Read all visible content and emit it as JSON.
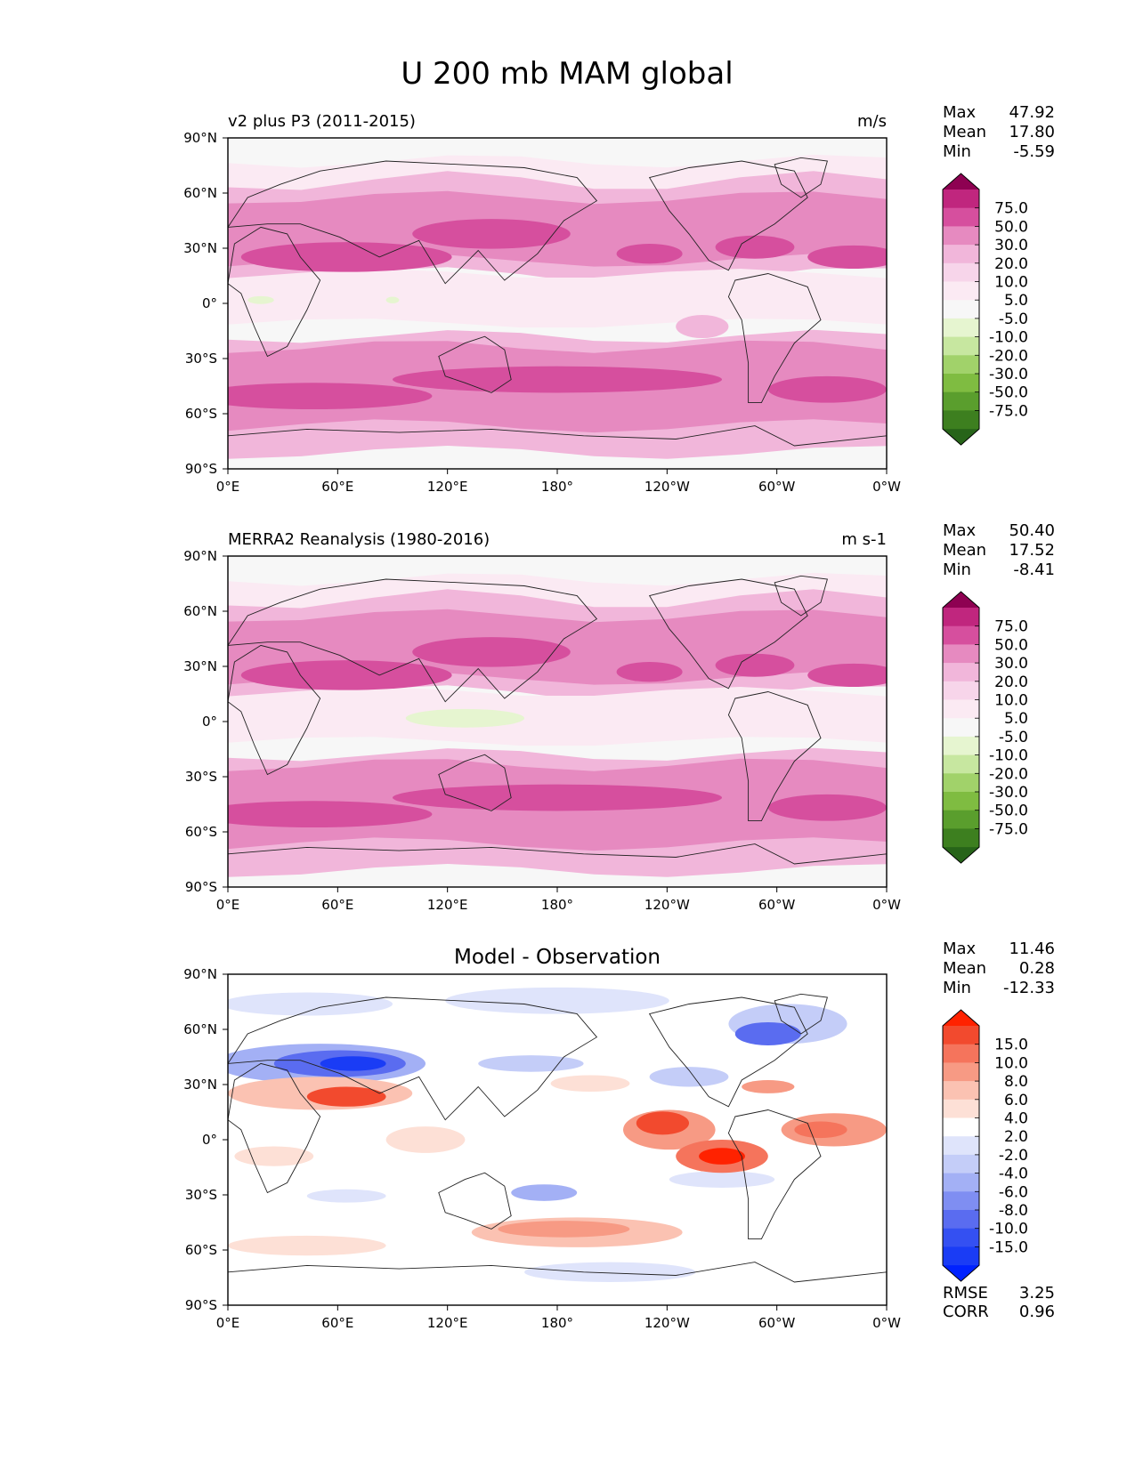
{
  "figure_title": "U 200 mb MAM global",
  "panels": [
    {
      "key": "test",
      "left_title": "v2 plus P3 (2011-2015)",
      "center_title": "",
      "units": "m/s",
      "stats": [
        {
          "label": "Max",
          "value": "47.92"
        },
        {
          "label": "Mean",
          "value": "17.80"
        },
        {
          "label": "Min",
          "value": "-5.59"
        }
      ],
      "extra_stats": []
    },
    {
      "key": "ref",
      "left_title": "MERRA2 Reanalysis (1980-2016)",
      "center_title": "",
      "units": "m s-1",
      "stats": [
        {
          "label": "Max",
          "value": "50.40"
        },
        {
          "label": "Mean",
          "value": "17.52"
        },
        {
          "label": "Min",
          "value": "-8.41"
        }
      ],
      "extra_stats": []
    },
    {
      "key": "diff",
      "left_title": "",
      "center_title": "Model - Observation",
      "units": "",
      "stats": [
        {
          "label": "Max",
          "value": "11.46"
        },
        {
          "label": "Mean",
          "value": "0.28"
        },
        {
          "label": "Min",
          "value": "-12.33"
        }
      ],
      "extra_stats": [
        {
          "label": "RMSE",
          "value": "3.25"
        },
        {
          "label": "CORR",
          "value": "0.96"
        }
      ]
    }
  ],
  "axes": {
    "lat_ticks": [
      "90°N",
      "60°N",
      "30°N",
      "0°",
      "30°S",
      "60°S",
      "90°S"
    ],
    "lon_ticks": [
      "0°E",
      "60°E",
      "120°E",
      "180°",
      "120°W",
      "60°W",
      "0°W"
    ]
  },
  "colorbars": {
    "wind": {
      "labels": [
        "75.0",
        "50.0",
        "30.0",
        "20.0",
        "10.0",
        "5.0",
        "-5.0",
        "-10.0",
        "-20.0",
        "-30.0",
        "-50.0",
        "-75.0"
      ],
      "colors": [
        "#8e0152",
        "#c0267e",
        "#d64f9e",
        "#e68ac0",
        "#f1b6da",
        "#f7d5ea",
        "#fbeaf3",
        "#f7f7f7",
        "#e6f5d0",
        "#c7e7a0",
        "#a1d26a",
        "#7fbc41",
        "#5a9e2d",
        "#3d7f1f",
        "#276419"
      ]
    },
    "diff": {
      "labels": [
        "15.0",
        "10.0",
        "8.0",
        "6.0",
        "4.0",
        "2.0",
        "-2.0",
        "-4.0",
        "-6.0",
        "-8.0",
        "-10.0",
        "-15.0"
      ],
      "colors": [
        "#ff2200",
        "#f24a2e",
        "#f5745c",
        "#f79a84",
        "#fbc2b2",
        "#fde0d6",
        "#ffffff",
        "#dfe4fb",
        "#c4cdf8",
        "#a3b0f5",
        "#7f8ef2",
        "#5a6cf0",
        "#3450f2",
        "#1a3cf5",
        "#0022ff"
      ]
    }
  },
  "chart_data": [
    {
      "type": "heatmap",
      "title": "v2 plus P3 (2011-2015)",
      "units": "m/s",
      "variable": "U 200 mb",
      "season": "MAM",
      "x": [
        "0°E",
        "60°E",
        "120°E",
        "180°",
        "120°W",
        "60°W",
        "0°W"
      ],
      "y": [
        "90°N",
        "60°N",
        "30°N",
        "0°",
        "30°S",
        "60°S",
        "90°S"
      ],
      "xlim": [
        0,
        360
      ],
      "ylim": [
        -90,
        90
      ],
      "levels": [
        -75.0,
        -50.0,
        -30.0,
        -20.0,
        -10.0,
        -5.0,
        5.0,
        10.0,
        20.0,
        30.0,
        50.0,
        75.0
      ],
      "max": 47.92,
      "mean": 17.8,
      "min": -5.59
    },
    {
      "type": "heatmap",
      "title": "MERRA2 Reanalysis (1980-2016)",
      "units": "m s-1",
      "variable": "U 200 mb",
      "season": "MAM",
      "x": [
        "0°E",
        "60°E",
        "120°E",
        "180°",
        "120°W",
        "60°W",
        "0°W"
      ],
      "y": [
        "90°N",
        "60°N",
        "30°N",
        "0°",
        "30°S",
        "60°S",
        "90°S"
      ],
      "xlim": [
        0,
        360
      ],
      "ylim": [
        -90,
        90
      ],
      "levels": [
        -75.0,
        -50.0,
        -30.0,
        -20.0,
        -10.0,
        -5.0,
        5.0,
        10.0,
        20.0,
        30.0,
        50.0,
        75.0
      ],
      "max": 50.4,
      "mean": 17.52,
      "min": -8.41
    },
    {
      "type": "heatmap",
      "title": "Model - Observation",
      "variable": "U 200 mb",
      "season": "MAM",
      "x": [
        "0°E",
        "60°E",
        "120°E",
        "180°",
        "120°W",
        "60°W",
        "0°W"
      ],
      "y": [
        "90°N",
        "60°N",
        "30°N",
        "0°",
        "30°S",
        "60°S",
        "90°S"
      ],
      "xlim": [
        0,
        360
      ],
      "ylim": [
        -90,
        90
      ],
      "levels": [
        -15.0,
        -10.0,
        -8.0,
        -6.0,
        -4.0,
        -2.0,
        2.0,
        4.0,
        6.0,
        8.0,
        10.0,
        15.0
      ],
      "max": 11.46,
      "mean": 0.28,
      "min": -12.33,
      "rmse": 3.25,
      "corr": 0.96
    }
  ]
}
